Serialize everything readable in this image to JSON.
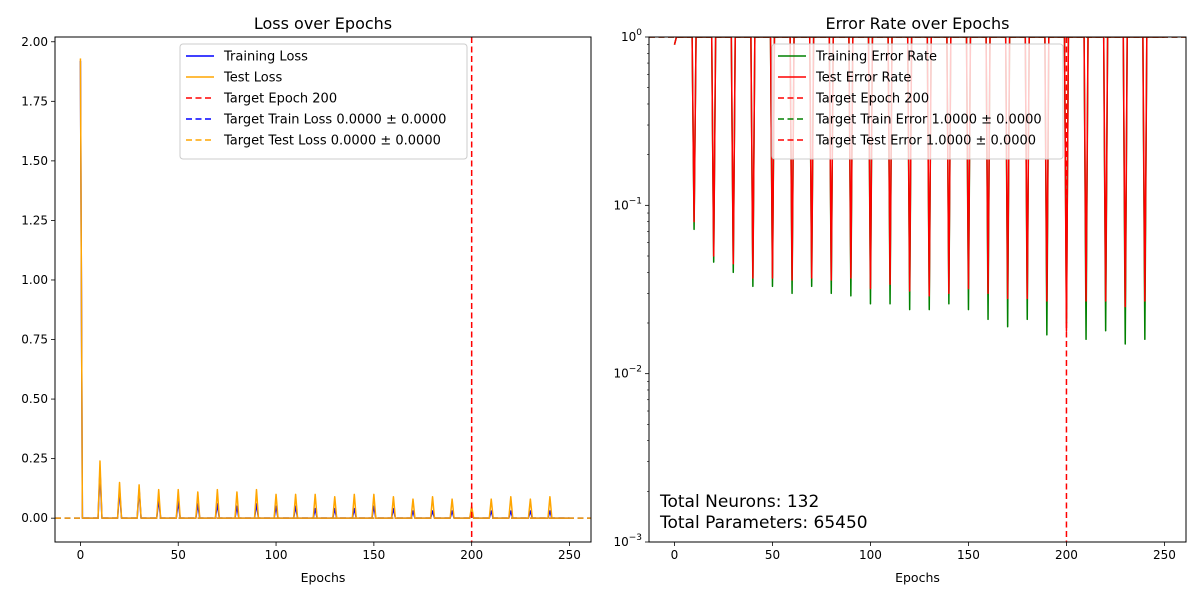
{
  "chart_data": [
    {
      "type": "line",
      "title": "Loss over Epochs",
      "xlabel": "Epochs",
      "ylabel": "",
      "xlim": [
        -13,
        261
      ],
      "ylim": [
        -0.1,
        2.02
      ],
      "xticks": [
        0,
        50,
        100,
        150,
        200,
        250
      ],
      "xtick_labels": [
        "0",
        "50",
        "100",
        "150",
        "200",
        "250"
      ],
      "yticks": [
        0.0,
        0.25,
        0.5,
        0.75,
        1.0,
        1.25,
        1.5,
        1.75,
        2.0
      ],
      "ytick_labels": [
        "0.00",
        "0.25",
        "0.50",
        "0.75",
        "1.00",
        "1.25",
        "1.50",
        "1.75",
        "2.00"
      ],
      "grid": false,
      "legend_position": "top-center",
      "series": [
        {
          "name": "Training Loss",
          "color": "#0000ff",
          "style": "solid",
          "x": [
            0,
            1,
            2,
            9,
            10,
            11,
            19,
            20,
            21,
            29,
            30,
            31,
            39,
            40,
            41,
            49,
            50,
            51,
            59,
            60,
            61,
            69,
            70,
            71,
            79,
            80,
            81,
            89,
            90,
            91,
            99,
            100,
            101,
            109,
            110,
            111,
            119,
            120,
            121,
            129,
            130,
            131,
            139,
            140,
            141,
            149,
            150,
            151,
            159,
            160,
            161,
            169,
            170,
            171,
            179,
            180,
            181,
            189,
            190,
            191,
            199,
            200,
            201,
            209,
            210,
            211,
            219,
            220,
            221,
            229,
            230,
            231,
            239,
            240,
            241,
            250
          ],
          "values": [
            1.92,
            0.0,
            0.0,
            0.0,
            0.2,
            0.0,
            0.0,
            0.12,
            0.0,
            0.0,
            0.12,
            0.0,
            0.0,
            0.08,
            0.0,
            0.0,
            0.07,
            0.0,
            0.0,
            0.06,
            0.0,
            0.0,
            0.06,
            0.0,
            0.0,
            0.05,
            0.0,
            0.0,
            0.06,
            0.0,
            0.0,
            0.05,
            0.0,
            0.0,
            0.05,
            0.0,
            0.0,
            0.04,
            0.0,
            0.0,
            0.04,
            0.0,
            0.0,
            0.04,
            0.0,
            0.0,
            0.05,
            0.0,
            0.0,
            0.04,
            0.0,
            0.0,
            0.03,
            0.0,
            0.0,
            0.03,
            0.0,
            0.0,
            0.03,
            0.0,
            0.0,
            0.03,
            0.0,
            0.0,
            0.03,
            0.0,
            0.0,
            0.03,
            0.0,
            0.0,
            0.03,
            0.0,
            0.0,
            0.03,
            0.0,
            0.0
          ]
        },
        {
          "name": "Test Loss",
          "color": "#ffa500",
          "style": "solid",
          "x": [
            0,
            1,
            2,
            9,
            10,
            11,
            19,
            20,
            21,
            29,
            30,
            31,
            39,
            40,
            41,
            49,
            50,
            51,
            59,
            60,
            61,
            69,
            70,
            71,
            79,
            80,
            81,
            89,
            90,
            91,
            99,
            100,
            101,
            109,
            110,
            111,
            119,
            120,
            121,
            129,
            130,
            131,
            139,
            140,
            141,
            149,
            150,
            151,
            159,
            160,
            161,
            169,
            170,
            171,
            179,
            180,
            181,
            189,
            190,
            191,
            199,
            200,
            201,
            209,
            210,
            211,
            219,
            220,
            221,
            229,
            230,
            231,
            239,
            240,
            241,
            250
          ],
          "values": [
            1.93,
            0.0,
            0.0,
            0.0,
            0.24,
            0.0,
            0.0,
            0.15,
            0.0,
            0.0,
            0.14,
            0.0,
            0.0,
            0.12,
            0.0,
            0.0,
            0.12,
            0.0,
            0.0,
            0.11,
            0.0,
            0.0,
            0.12,
            0.0,
            0.0,
            0.11,
            0.0,
            0.0,
            0.12,
            0.0,
            0.0,
            0.1,
            0.0,
            0.0,
            0.1,
            0.0,
            0.0,
            0.1,
            0.0,
            0.0,
            0.09,
            0.0,
            0.0,
            0.1,
            0.0,
            0.0,
            0.1,
            0.0,
            0.0,
            0.09,
            0.0,
            0.0,
            0.08,
            0.0,
            0.0,
            0.09,
            0.0,
            0.0,
            0.08,
            0.0,
            0.0,
            0.05,
            0.0,
            0.0,
            0.08,
            0.0,
            0.0,
            0.09,
            0.0,
            0.0,
            0.08,
            0.0,
            0.0,
            0.09,
            0.0,
            0.0
          ]
        }
      ],
      "reference_lines": [
        {
          "name": "Target Epoch 200",
          "orientation": "vertical",
          "value": 200,
          "color": "#ff0000",
          "style": "dashed"
        },
        {
          "name": "Target Train Loss 0.0000 ± 0.0000",
          "orientation": "horizontal",
          "value": 0.0,
          "color": "#0000ff",
          "style": "dashed"
        },
        {
          "name": "Target Test Loss 0.0000 ± 0.0000",
          "orientation": "horizontal",
          "value": 0.0,
          "color": "#ffa500",
          "style": "dashed"
        }
      ]
    },
    {
      "type": "line",
      "title": "Error Rate over Epochs",
      "xlabel": "Epochs",
      "ylabel": "",
      "yscale": "log",
      "xlim": [
        -13,
        261
      ],
      "ylim": [
        0.001,
        1.0
      ],
      "xticks": [
        0,
        50,
        100,
        150,
        200,
        250
      ],
      "xtick_labels": [
        "0",
        "50",
        "100",
        "150",
        "200",
        "250"
      ],
      "yticks": [
        0.001,
        0.01,
        0.1,
        1.0
      ],
      "ytick_labels": [
        [
          "10",
          "−3"
        ],
        [
          "10",
          "−2"
        ],
        [
          "10",
          "−1"
        ],
        [
          "10",
          "0"
        ]
      ],
      "grid": false,
      "legend_position": "top-center",
      "series": [
        {
          "name": "Training Error Rate",
          "color": "#008000",
          "style": "solid",
          "x": [
            0,
            1,
            2,
            9,
            10,
            11,
            19,
            20,
            21,
            29,
            30,
            31,
            39,
            40,
            41,
            49,
            50,
            51,
            59,
            60,
            61,
            69,
            70,
            71,
            79,
            80,
            81,
            89,
            90,
            91,
            99,
            100,
            101,
            109,
            110,
            111,
            119,
            120,
            121,
            129,
            130,
            131,
            139,
            140,
            141,
            149,
            150,
            151,
            159,
            160,
            161,
            169,
            170,
            171,
            179,
            180,
            181,
            189,
            190,
            191,
            199,
            200,
            201,
            209,
            210,
            211,
            219,
            220,
            221,
            229,
            230,
            231,
            239,
            240,
            241,
            250
          ],
          "values": [
            0.9,
            1,
            1,
            1,
            0.072,
            1,
            1,
            0.046,
            1,
            1,
            0.04,
            1,
            1,
            0.033,
            1,
            1,
            0.033,
            1,
            1,
            0.03,
            1,
            1,
            0.033,
            1,
            1,
            0.03,
            1,
            1,
            0.029,
            1,
            1,
            0.026,
            1,
            1,
            0.026,
            1,
            1,
            0.024,
            1,
            1,
            0.024,
            1,
            1,
            0.026,
            1,
            1,
            0.024,
            1,
            1,
            0.021,
            1,
            1,
            0.019,
            1,
            1,
            0.021,
            1,
            1,
            0.017,
            1,
            1,
            0.02,
            1,
            1,
            0.016,
            1,
            1,
            0.018,
            1,
            1,
            0.015,
            1,
            1,
            0.016,
            1,
            1
          ]
        },
        {
          "name": "Test Error Rate",
          "color": "#ff0000",
          "style": "solid",
          "x": [
            0,
            1,
            2,
            9,
            10,
            11,
            19,
            20,
            21,
            29,
            30,
            31,
            39,
            40,
            41,
            49,
            50,
            51,
            59,
            60,
            61,
            69,
            70,
            71,
            79,
            80,
            81,
            89,
            90,
            91,
            99,
            100,
            101,
            109,
            110,
            111,
            119,
            120,
            121,
            129,
            130,
            131,
            139,
            140,
            141,
            149,
            150,
            151,
            159,
            160,
            161,
            169,
            170,
            171,
            179,
            180,
            181,
            189,
            190,
            191,
            199,
            200,
            201,
            209,
            210,
            211,
            219,
            220,
            221,
            229,
            230,
            231,
            239,
            240,
            241,
            250
          ],
          "values": [
            0.9,
            1,
            1,
            1,
            0.08,
            1,
            1,
            0.05,
            1,
            1,
            0.045,
            1,
            1,
            0.037,
            1,
            1,
            0.037,
            1,
            1,
            0.036,
            1,
            1,
            0.037,
            1,
            1,
            0.036,
            1,
            1,
            0.037,
            1,
            1,
            0.032,
            1,
            1,
            0.034,
            1,
            1,
            0.031,
            1,
            1,
            0.029,
            1,
            1,
            0.03,
            1,
            1,
            0.032,
            1,
            1,
            0.03,
            1,
            1,
            0.028,
            1,
            1,
            0.028,
            1,
            1,
            0.027,
            1,
            1,
            0.018,
            1,
            1,
            0.027,
            1,
            1,
            0.027,
            1,
            1,
            0.025,
            1,
            1,
            0.027,
            1,
            1
          ]
        }
      ],
      "reference_lines": [
        {
          "name": "Target Epoch 200",
          "orientation": "vertical",
          "value": 200,
          "color": "#ff0000",
          "style": "dashed"
        },
        {
          "name": "Target Train Error 1.0000 ± 0.0000",
          "orientation": "horizontal",
          "value": 1.0,
          "color": "#008000",
          "style": "dashed"
        },
        {
          "name": "Target Test Error 1.0000 ± 0.0000",
          "orientation": "horizontal",
          "value": 1.0,
          "color": "#ff0000",
          "style": "dashed"
        }
      ],
      "annotations": [
        "Total Neurons: 132",
        "Total Parameters: 65450"
      ]
    }
  ]
}
